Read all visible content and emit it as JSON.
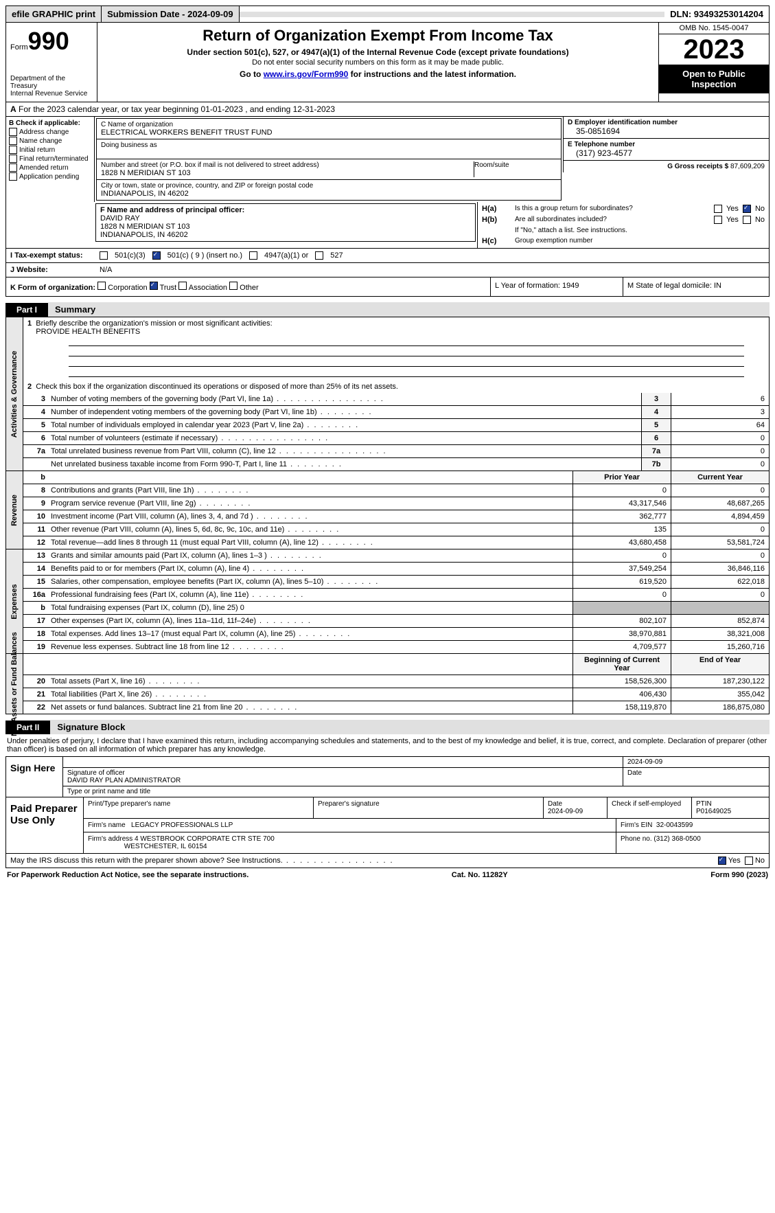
{
  "topbar": {
    "efile": "efile GRAPHIC print",
    "submission_label": "Submission Date - 2024-09-09",
    "dln_label": "DLN: 93493253014204"
  },
  "header": {
    "form_label": "Form",
    "form_number": "990",
    "dept": "Department of the Treasury\nInternal Revenue Service",
    "title": "Return of Organization Exempt From Income Tax",
    "subtitle": "Under section 501(c), 527, or 4947(a)(1) of the Internal Revenue Code (except private foundations)",
    "note1": "Do not enter social security numbers on this form as it may be made public.",
    "note2_pre": "Go to ",
    "note2_link": "www.irs.gov/Form990",
    "note2_post": " for instructions and the latest information.",
    "omb": "OMB No. 1545-0047",
    "year": "2023",
    "inspect": "Open to Public Inspection"
  },
  "lineA": "For the 2023 calendar year, or tax year beginning 01-01-2023   , and ending 12-31-2023",
  "boxB": {
    "title": "B Check if applicable:",
    "opts": [
      "Address change",
      "Name change",
      "Initial return",
      "Final return/terminated",
      "Amended return",
      "Application pending"
    ]
  },
  "boxC": {
    "name_label": "C Name of organization",
    "name": "ELECTRICAL WORKERS BENEFIT TRUST FUND",
    "dba_label": "Doing business as",
    "street_label": "Number and street (or P.O. box if mail is not delivered to street address)",
    "room_label": "Room/suite",
    "street": "1828 N MERIDIAN ST 103",
    "city_label": "City or town, state or province, country, and ZIP or foreign postal code",
    "city": "INDIANAPOLIS, IN  46202"
  },
  "boxD": {
    "label": "D Employer identification number",
    "val": "35-0851694"
  },
  "boxE": {
    "label": "E Telephone number",
    "val": "(317) 923-4577"
  },
  "boxG": {
    "label": "G Gross receipts $",
    "val": "87,609,209"
  },
  "boxF": {
    "label": "F  Name and address of principal officer:",
    "name": "DAVID RAY",
    "line1": "1828 N MERIDIAN ST 103",
    "line2": "INDIANAPOLIS, IN  46202"
  },
  "boxH": {
    "a_label": "H(a)",
    "a_text": "Is this a group return for subordinates?",
    "b_label": "H(b)",
    "b_text": "Are all subordinates included?",
    "b_note": "If \"No,\" attach a list. See instructions.",
    "c_label": "H(c)",
    "c_text": "Group exemption number",
    "yes": "Yes",
    "no": "No"
  },
  "lineI": {
    "label": "I    Tax-exempt status:",
    "o1": "501(c)(3)",
    "o2": "501(c) ( 9 ) (insert no.)",
    "o3": "4947(a)(1) or",
    "o4": "527"
  },
  "lineJ": {
    "label": "J    Website:",
    "val": "N/A"
  },
  "lineK": {
    "label": "K Form of organization:",
    "o1": "Corporation",
    "o2": "Trust",
    "o3": "Association",
    "o4": "Other"
  },
  "lineL": "L Year of formation: 1949",
  "lineM": "M State of legal domicile: IN",
  "part1": {
    "tag": "Part I",
    "title": "Summary"
  },
  "gov": {
    "label": "Activities & Governance",
    "l1": "Briefly describe the organization's mission or most significant activities:",
    "l1v": "PROVIDE HEALTH BENEFITS",
    "l2": "Check this box       if the organization discontinued its operations or disposed of more than 25% of its net assets.",
    "l3": "Number of voting members of the governing body (Part VI, line 1a)",
    "l4": "Number of independent voting members of the governing body (Part VI, line 1b)",
    "l5": "Total number of individuals employed in calendar year 2023 (Part V, line 2a)",
    "l6": "Total number of volunteers (estimate if necessary)",
    "l7a": "Total unrelated business revenue from Part VIII, column (C), line 12",
    "l7b": "Net unrelated business taxable income from Form 990-T, Part I, line 11",
    "v3": "6",
    "v4": "3",
    "v5": "64",
    "v6": "0",
    "v7a": "0",
    "v7b": "0"
  },
  "rev": {
    "label": "Revenue",
    "hdr_prior": "Prior Year",
    "hdr_curr": "Current Year",
    "rows": [
      {
        "n": "8",
        "t": "Contributions and grants (Part VIII, line 1h)",
        "p": "0",
        "c": "0"
      },
      {
        "n": "9",
        "t": "Program service revenue (Part VIII, line 2g)",
        "p": "43,317,546",
        "c": "48,687,265"
      },
      {
        "n": "10",
        "t": "Investment income (Part VIII, column (A), lines 3, 4, and 7d )",
        "p": "362,777",
        "c": "4,894,459"
      },
      {
        "n": "11",
        "t": "Other revenue (Part VIII, column (A), lines 5, 6d, 8c, 9c, 10c, and 11e)",
        "p": "135",
        "c": "0"
      },
      {
        "n": "12",
        "t": "Total revenue—add lines 8 through 11 (must equal Part VIII, column (A), line 12)",
        "p": "43,680,458",
        "c": "53,581,724"
      }
    ]
  },
  "exp": {
    "label": "Expenses",
    "rows": [
      {
        "n": "13",
        "t": "Grants and similar amounts paid (Part IX, column (A), lines 1–3 )",
        "p": "0",
        "c": "0"
      },
      {
        "n": "14",
        "t": "Benefits paid to or for members (Part IX, column (A), line 4)",
        "p": "37,549,254",
        "c": "36,846,116"
      },
      {
        "n": "15",
        "t": "Salaries, other compensation, employee benefits (Part IX, column (A), lines 5–10)",
        "p": "619,520",
        "c": "622,018"
      },
      {
        "n": "16a",
        "t": "Professional fundraising fees (Part IX, column (A), line 11e)",
        "p": "0",
        "c": "0"
      }
    ],
    "l16b": "Total fundraising expenses (Part IX, column (D), line 25) 0",
    "rows2": [
      {
        "n": "17",
        "t": "Other expenses (Part IX, column (A), lines 11a–11d, 11f–24e)",
        "p": "802,107",
        "c": "852,874"
      },
      {
        "n": "18",
        "t": "Total expenses. Add lines 13–17 (must equal Part IX, column (A), line 25)",
        "p": "38,970,881",
        "c": "38,321,008"
      },
      {
        "n": "19",
        "t": "Revenue less expenses. Subtract line 18 from line 12",
        "p": "4,709,577",
        "c": "15,260,716"
      }
    ]
  },
  "net": {
    "label": "Net Assets or Fund Balances",
    "hdr_begin": "Beginning of Current Year",
    "hdr_end": "End of Year",
    "rows": [
      {
        "n": "20",
        "t": "Total assets (Part X, line 16)",
        "p": "158,526,300",
        "c": "187,230,122"
      },
      {
        "n": "21",
        "t": "Total liabilities (Part X, line 26)",
        "p": "406,430",
        "c": "355,042"
      },
      {
        "n": "22",
        "t": "Net assets or fund balances. Subtract line 21 from line 20",
        "p": "158,119,870",
        "c": "186,875,080"
      }
    ]
  },
  "part2": {
    "tag": "Part II",
    "title": "Signature Block"
  },
  "sig": {
    "decl": "Under penalties of perjury, I declare that I have examined this return, including accompanying schedules and statements, and to the best of my knowledge and belief, it is true, correct, and complete. Declaration of preparer (other than officer) is based on all information of which preparer has any knowledge.",
    "sign_here": "Sign Here",
    "date": "2024-09-09",
    "sig_officer": "Signature of officer",
    "officer": "DAVID RAY PLAN ADMINISTRATOR",
    "type_name": "Type or print name and title",
    "date_label": "Date"
  },
  "paid": {
    "label": "Paid Preparer Use Only",
    "h1": "Print/Type preparer's name",
    "h2": "Preparer's signature",
    "h3": "Date",
    "h4": "Check        if self-employed",
    "h5": "PTIN",
    "date": "2024-09-09",
    "ptin": "P01649025",
    "firm_label": "Firm's name",
    "firm": "LEGACY PROFESSIONALS LLP",
    "ein_label": "Firm's EIN",
    "ein": "32-0043599",
    "addr_label": "Firm's address",
    "addr1": "4 WESTBROOK CORPORATE CTR STE 700",
    "addr2": "WESTCHESTER, IL  60154",
    "phone_label": "Phone no.",
    "phone": "(312) 368-0500"
  },
  "discuss": {
    "text": "May the IRS discuss this return with the preparer shown above? See Instructions.",
    "yes": "Yes",
    "no": "No"
  },
  "footer": {
    "left": "For Paperwork Reduction Act Notice, see the separate instructions.",
    "mid": "Cat. No. 11282Y",
    "right": "Form 990 (2023)"
  }
}
